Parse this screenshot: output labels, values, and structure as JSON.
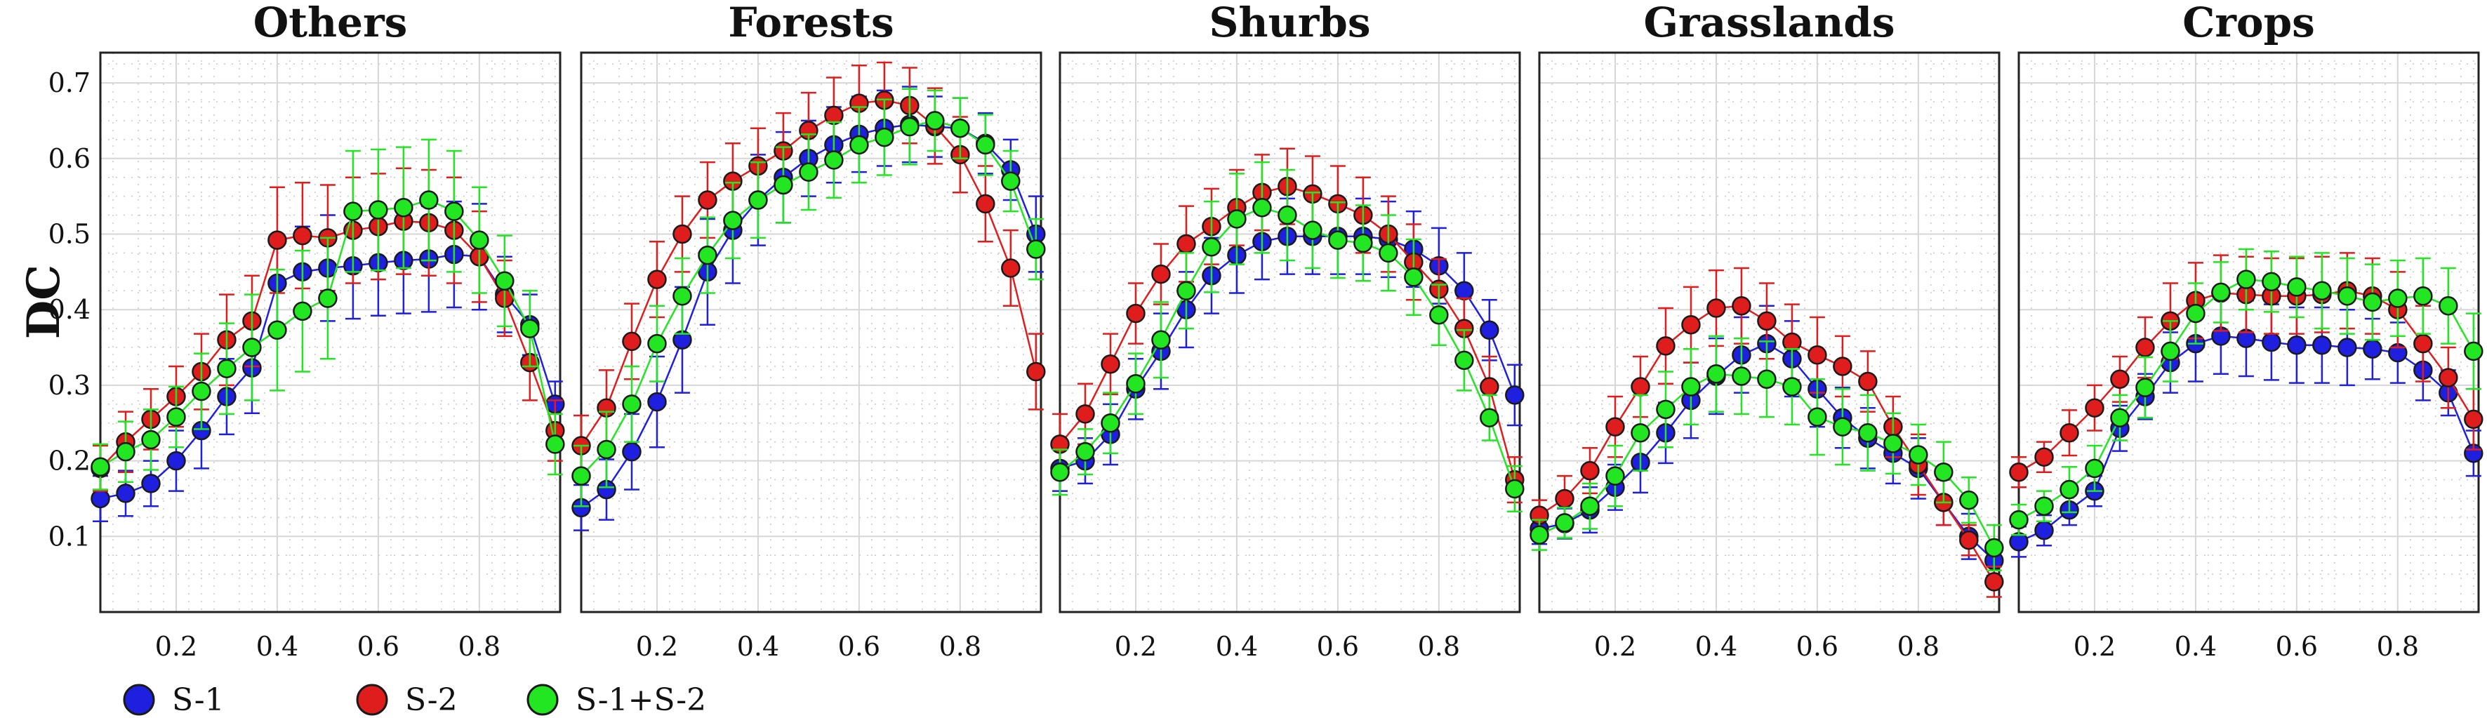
{
  "chart_data": {
    "type": "line",
    "ylabel": "DC",
    "ylim": [
      0,
      0.74
    ],
    "xlim": [
      0.05,
      0.96
    ],
    "yticks": [
      0.1,
      0.2,
      0.3,
      0.4,
      0.5,
      0.6,
      0.7
    ],
    "xticks": [
      0.2,
      0.4,
      0.6,
      0.8
    ],
    "grid": true,
    "legend": {
      "placement": "bottom-left",
      "entries": [
        {
          "name": "S-1",
          "color": "#1f1fe0"
        },
        {
          "name": "S-2",
          "color": "#e01d1d"
        },
        {
          "name": "S-1+S-2",
          "color": "#22e622"
        }
      ]
    },
    "x": [
      0.05,
      0.1,
      0.15,
      0.2,
      0.25,
      0.3,
      0.35,
      0.4,
      0.45,
      0.5,
      0.55,
      0.6,
      0.65,
      0.7,
      0.75,
      0.8,
      0.85,
      0.9,
      0.95
    ],
    "panels": [
      {
        "title": "Others",
        "series": [
          {
            "name": "S-1",
            "values": [
              0.15,
              0.157,
              0.17,
              0.2,
              0.24,
              0.285,
              0.323,
              0.435,
              0.45,
              0.455,
              0.458,
              0.462,
              0.465,
              0.467,
              0.473,
              0.47,
              0.42,
              0.38,
              0.275
            ],
            "errors": [
              0.03,
              0.03,
              0.03,
              0.04,
              0.05,
              0.05,
              0.06,
              0.06,
              0.06,
              0.07,
              0.07,
              0.07,
              0.07,
              0.07,
              0.07,
              0.07,
              0.05,
              0.04,
              0.03
            ]
          },
          {
            "name": "S-2",
            "values": [
              0.19,
              0.225,
              0.255,
              0.285,
              0.318,
              0.36,
              0.385,
              0.492,
              0.498,
              0.495,
              0.505,
              0.51,
              0.517,
              0.515,
              0.505,
              0.47,
              0.415,
              0.33,
              0.24
            ],
            "errors": [
              0.03,
              0.04,
              0.04,
              0.04,
              0.05,
              0.06,
              0.06,
              0.07,
              0.07,
              0.07,
              0.07,
              0.07,
              0.07,
              0.07,
              0.07,
              0.06,
              0.05,
              0.05,
              0.04
            ]
          },
          {
            "name": "S-1+S-2",
            "values": [
              0.192,
              0.212,
              0.228,
              0.258,
              0.292,
              0.322,
              0.35,
              0.373,
              0.398,
              0.415,
              0.53,
              0.532,
              0.535,
              0.545,
              0.53,
              0.492,
              0.438,
              0.375,
              0.222
            ],
            "errors": [
              0.03,
              0.04,
              0.04,
              0.04,
              0.05,
              0.06,
              0.07,
              0.08,
              0.08,
              0.08,
              0.08,
              0.08,
              0.08,
              0.08,
              0.08,
              0.07,
              0.06,
              0.05,
              0.04
            ]
          }
        ]
      },
      {
        "title": "Forests",
        "series": [
          {
            "name": "S-1",
            "values": [
              0.138,
              0.162,
              0.212,
              0.278,
              0.36,
              0.45,
              0.505,
              0.545,
              0.575,
              0.6,
              0.618,
              0.632,
              0.64,
              0.645,
              0.642,
              0.64,
              0.62,
              0.585,
              0.5
            ],
            "errors": [
              0.03,
              0.04,
              0.05,
              0.06,
              0.07,
              0.07,
              0.07,
              0.06,
              0.06,
              0.05,
              0.05,
              0.05,
              0.05,
              0.05,
              0.04,
              0.04,
              0.04,
              0.04,
              0.05
            ]
          },
          {
            "name": "S-2",
            "values": [
              0.22,
              0.27,
              0.358,
              0.44,
              0.5,
              0.545,
              0.57,
              0.59,
              0.61,
              0.637,
              0.657,
              0.673,
              0.677,
              0.67,
              0.643,
              0.605,
              0.54,
              0.455,
              0.318
            ],
            "errors": [
              0.04,
              0.05,
              0.05,
              0.05,
              0.05,
              0.05,
              0.05,
              0.05,
              0.05,
              0.05,
              0.05,
              0.05,
              0.05,
              0.05,
              0.05,
              0.05,
              0.05,
              0.05,
              0.05
            ]
          },
          {
            "name": "S-1+S-2",
            "values": [
              0.18,
              0.215,
              0.275,
              0.355,
              0.418,
              0.472,
              0.518,
              0.545,
              0.565,
              0.582,
              0.598,
              0.618,
              0.628,
              0.642,
              0.65,
              0.64,
              0.618,
              0.57,
              0.48
            ],
            "errors": [
              0.04,
              0.05,
              0.05,
              0.05,
              0.05,
              0.05,
              0.05,
              0.05,
              0.05,
              0.05,
              0.05,
              0.05,
              0.05,
              0.05,
              0.04,
              0.04,
              0.04,
              0.04,
              0.04
            ]
          }
        ]
      },
      {
        "title": "Shurbs",
        "series": [
          {
            "name": "S-1",
            "values": [
              0.19,
              0.2,
              0.235,
              0.295,
              0.345,
              0.4,
              0.445,
              0.472,
              0.49,
              0.497,
              0.497,
              0.497,
              0.497,
              0.493,
              0.48,
              0.458,
              0.425,
              0.373,
              0.287
            ],
            "errors": [
              0.03,
              0.03,
              0.04,
              0.04,
              0.05,
              0.05,
              0.05,
              0.05,
              0.05,
              0.05,
              0.05,
              0.05,
              0.05,
              0.05,
              0.05,
              0.05,
              0.05,
              0.04,
              0.04
            ]
          },
          {
            "name": "S-2",
            "values": [
              0.222,
              0.262,
              0.328,
              0.395,
              0.447,
              0.487,
              0.51,
              0.535,
              0.555,
              0.563,
              0.553,
              0.54,
              0.525,
              0.5,
              0.463,
              0.427,
              0.375,
              0.298,
              0.175
            ],
            "errors": [
              0.04,
              0.04,
              0.04,
              0.04,
              0.04,
              0.05,
              0.05,
              0.05,
              0.05,
              0.05,
              0.05,
              0.05,
              0.05,
              0.05,
              0.05,
              0.04,
              0.04,
              0.04,
              0.03
            ]
          },
          {
            "name": "S-1+S-2",
            "values": [
              0.185,
              0.212,
              0.25,
              0.302,
              0.36,
              0.425,
              0.483,
              0.52,
              0.535,
              0.525,
              0.505,
              0.492,
              0.488,
              0.475,
              0.443,
              0.393,
              0.333,
              0.257,
              0.163
            ],
            "errors": [
              0.03,
              0.03,
              0.04,
              0.04,
              0.05,
              0.05,
              0.06,
              0.06,
              0.06,
              0.06,
              0.05,
              0.05,
              0.05,
              0.05,
              0.05,
              0.04,
              0.04,
              0.03,
              0.03
            ]
          }
        ]
      },
      {
        "title": "Grasslands",
        "series": [
          {
            "name": "S-1",
            "values": [
              0.11,
              0.117,
              0.135,
              0.165,
              0.198,
              0.237,
              0.28,
              0.312,
              0.34,
              0.355,
              0.335,
              0.295,
              0.257,
              0.23,
              0.21,
              0.19,
              0.145,
              0.1,
              0.068
            ],
            "errors": [
              0.02,
              0.02,
              0.03,
              0.03,
              0.04,
              0.04,
              0.05,
              0.05,
              0.05,
              0.05,
              0.05,
              0.05,
              0.04,
              0.04,
              0.04,
              0.04,
              0.03,
              0.03,
              0.02
            ]
          },
          {
            "name": "S-2",
            "values": [
              0.128,
              0.15,
              0.187,
              0.245,
              0.298,
              0.352,
              0.38,
              0.402,
              0.405,
              0.385,
              0.357,
              0.34,
              0.325,
              0.305,
              0.245,
              0.195,
              0.145,
              0.095,
              0.04
            ],
            "errors": [
              0.02,
              0.03,
              0.03,
              0.04,
              0.04,
              0.05,
              0.05,
              0.05,
              0.05,
              0.05,
              0.05,
              0.05,
              0.04,
              0.04,
              0.04,
              0.04,
              0.03,
              0.02,
              0.02
            ]
          },
          {
            "name": "S-1+S-2",
            "values": [
              0.102,
              0.118,
              0.14,
              0.18,
              0.237,
              0.268,
              0.298,
              0.315,
              0.312,
              0.308,
              0.298,
              0.258,
              0.245,
              0.237,
              0.223,
              0.208,
              0.185,
              0.148,
              0.085
            ],
            "errors": [
              0.02,
              0.02,
              0.03,
              0.04,
              0.05,
              0.05,
              0.05,
              0.05,
              0.05,
              0.05,
              0.05,
              0.05,
              0.05,
              0.05,
              0.04,
              0.04,
              0.04,
              0.03,
              0.03
            ]
          }
        ]
      },
      {
        "title": "Crops",
        "series": [
          {
            "name": "S-1",
            "values": [
              0.093,
              0.108,
              0.135,
              0.16,
              0.243,
              0.285,
              0.33,
              0.355,
              0.365,
              0.362,
              0.357,
              0.353,
              0.353,
              0.35,
              0.348,
              0.343,
              0.32,
              0.29,
              0.21
            ],
            "errors": [
              0.02,
              0.02,
              0.02,
              0.02,
              0.03,
              0.03,
              0.04,
              0.05,
              0.05,
              0.05,
              0.05,
              0.05,
              0.05,
              0.05,
              0.04,
              0.04,
              0.04,
              0.03,
              0.03
            ]
          },
          {
            "name": "S-2",
            "values": [
              0.185,
              0.205,
              0.237,
              0.27,
              0.308,
              0.35,
              0.385,
              0.412,
              0.422,
              0.42,
              0.418,
              0.418,
              0.42,
              0.425,
              0.418,
              0.4,
              0.355,
              0.31,
              0.255
            ],
            "errors": [
              0.02,
              0.02,
              0.03,
              0.03,
              0.03,
              0.04,
              0.05,
              0.05,
              0.05,
              0.05,
              0.05,
              0.05,
              0.05,
              0.05,
              0.05,
              0.05,
              0.05,
              0.04,
              0.04
            ]
          },
          {
            "name": "S-1+S-2",
            "values": [
              0.122,
              0.14,
              0.162,
              0.19,
              0.257,
              0.297,
              0.345,
              0.395,
              0.423,
              0.44,
              0.437,
              0.43,
              0.425,
              0.418,
              0.41,
              0.415,
              0.418,
              0.405,
              0.345
            ],
            "errors": [
              0.02,
              0.02,
              0.03,
              0.03,
              0.03,
              0.04,
              0.04,
              0.04,
              0.04,
              0.04,
              0.04,
              0.04,
              0.05,
              0.05,
              0.05,
              0.05,
              0.05,
              0.05,
              0.05
            ]
          }
        ]
      }
    ]
  }
}
